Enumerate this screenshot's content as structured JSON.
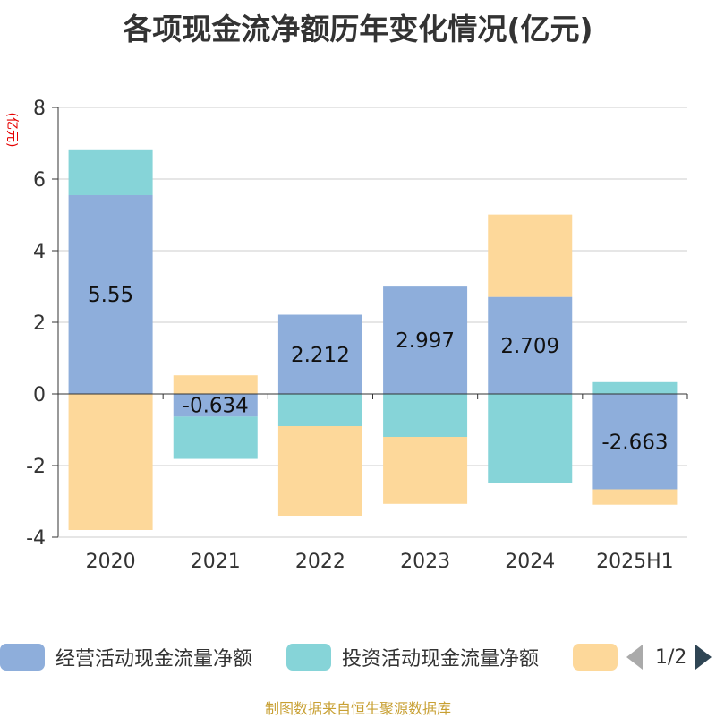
{
  "title": "各项现金流净额历年变化情况(亿元)",
  "source": "制图数据来自恒生聚源数据库",
  "legend": {
    "page": "1/2"
  },
  "chart_data": {
    "type": "bar",
    "stacked": true,
    "ylabel": "(亿元)",
    "ylim": [
      -4,
      8
    ],
    "yticks": [
      -4,
      -2,
      0,
      2,
      4,
      6,
      8
    ],
    "grid": true,
    "legend_position": "bottom",
    "categories": [
      "2020",
      "2021",
      "2022",
      "2023",
      "2024",
      "2025H1"
    ],
    "series": [
      {
        "name": "经营活动现金流量净额",
        "color": "#8eaedb",
        "values": [
          5.55,
          -0.634,
          2.212,
          2.997,
          2.709,
          -2.663
        ],
        "labels": [
          "5.55",
          "-0.634",
          "2.212",
          "2.997",
          "2.709",
          "-2.663"
        ]
      },
      {
        "name": "投资活动现金流量净额",
        "color": "#86d4d8",
        "values": [
          1.28,
          -1.18,
          -0.9,
          -1.2,
          -2.5,
          0.33
        ]
      },
      {
        "name": "",
        "color": "#fdd89a",
        "values": [
          -3.8,
          0.52,
          -2.5,
          -1.87,
          2.3,
          -0.43
        ]
      }
    ]
  }
}
